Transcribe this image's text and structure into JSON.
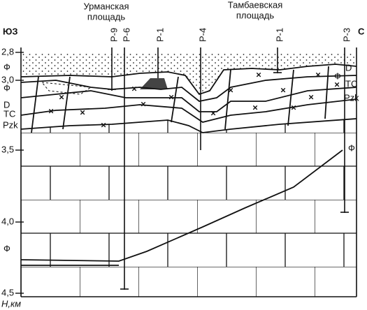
{
  "areas": [
    [
      "Урманская",
      "площадь"
    ],
    [
      "Тамбаевская",
      "площадь"
    ]
  ],
  "directions": [
    "ЮЗ",
    "С"
  ],
  "depth_axis": {
    "title": "Н,км",
    "labels": [
      "2,8",
      "3,0",
      "3,5",
      "4,0",
      "4,5"
    ]
  },
  "wells": [
    "Р-9",
    "Р-6",
    "Р-1",
    "Р-4",
    "Р-1",
    "Р-3"
  ],
  "layer_labels": {
    "left": [
      "Ф",
      "Ф",
      "D",
      "TC",
      "Pzk",
      "Ф"
    ],
    "right": [
      "D",
      "Ф",
      "TC",
      "Pzk",
      "Ф"
    ]
  }
}
